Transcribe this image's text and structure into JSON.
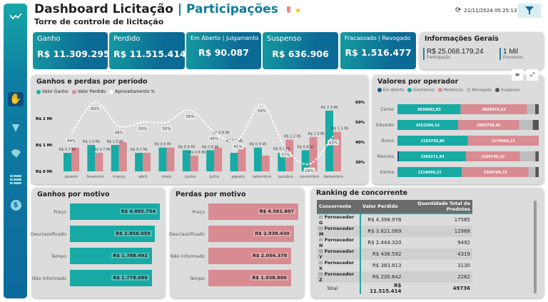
{
  "header": {
    "title": "Dashboard Licitação",
    "title_suffix": "| Participações",
    "subtitle": "Torre de controle de licitação",
    "refresh_time": "21/11/2024 05:25:13"
  },
  "sidebar": {
    "items": [
      {
        "icon": "trend-line-icon"
      },
      {
        "icon": "raised-hands-icon",
        "active": true
      },
      {
        "icon": "down-arrow-badge-icon"
      },
      {
        "icon": "brazil-map-icon"
      },
      {
        "icon": "list-icon"
      },
      {
        "icon": "dollar-icon"
      }
    ]
  },
  "kpis": [
    {
      "label": "Ganho",
      "value": "R$ 11.309.295"
    },
    {
      "label": "Perdido",
      "value": "R$ 11.515.414"
    },
    {
      "label": "Em Aberto | Julgamento",
      "value": "R$ 90.087"
    },
    {
      "label": "Suspenso",
      "value": "R$ 636.906"
    },
    {
      "label": "Fracassado | Revogado",
      "value": "R$ 1.516.477"
    }
  ],
  "info": {
    "title": "Informações Gerais",
    "items": [
      {
        "value": "R$ 25.068.179,24",
        "caption": "Participação"
      },
      {
        "value": "1 Mil",
        "caption": "Processos"
      }
    ]
  },
  "colors": {
    "ganho": "#18aaa4",
    "perdido": "#d98b92",
    "em_aberto": "#0d5c8e",
    "revogado": "#bdbdbd",
    "suspenso": "#555555",
    "primary": "#0d6a9c"
  },
  "chart_data": [
    {
      "type": "bar",
      "title": "Ganhos e perdas por período",
      "categories": [
        "janeiro",
        "fevereiro",
        "março",
        "abril",
        "maio",
        "junho",
        "julho",
        "agosto",
        "setembro",
        "outubro",
        "novembro",
        "dezembro"
      ],
      "series": [
        {
          "name": "Valor Ganho",
          "values": [
            0.7,
            1.0,
            1.0,
            0.7,
            0.9,
            0.8,
            0.8,
            0.7,
            0.9,
            0.7,
            0.8,
            2.3
          ],
          "labels": [
            "R$ 0.7 Mi",
            "R$ 1.0 Mi",
            "R$ 1.0 Mi",
            "R$ 0.7 Mi",
            "R$ 0.9 Mi",
            "R$ 0.8 Mi",
            "R$ 0.8 Mi",
            "R$ 0.7 Mi",
            "R$ 0.9 Mi",
            "R$ 0.7 Mi",
            "R$ 0.8 Mi",
            "R$ 2.3 Mi"
          ]
        },
        {
          "name": "Valor Perdido",
          "values": [
            0.9,
            0.7,
            1.1,
            0.7,
            0.9,
            0.6,
            0.9,
            0.9,
            0.6,
            1.2,
            1.3,
            1.5
          ],
          "labels": [
            "",
            "R$ 0.7 Mi",
            "",
            "",
            "",
            "R$ 0.6 Mi",
            "R$ 0.9 Mi",
            "",
            "",
            "R$ 1.2 Mi",
            "R$ 1.3 Mi",
            "R$ 1.5 Mi"
          ]
        },
        {
          "name": "Aproveitamento %",
          "type": "line",
          "axis": "right",
          "values": [
            44,
            60,
            48,
            50,
            50,
            56,
            45,
            41,
            59,
            37,
            29,
            43
          ]
        }
      ],
      "yticks": [
        "R$ 0 Mi",
        "R$ 1 Mi",
        "R$ 2 Mi"
      ],
      "ylim": [
        0,
        2.6
      ],
      "y2ticks": [
        "30%",
        "40%",
        "50%",
        "60%"
      ],
      "y2lim": [
        30,
        60
      ],
      "legend": "top-left"
    },
    {
      "type": "bar",
      "orientation": "horizontal",
      "stacked": "100%",
      "title": "Valores por operador",
      "legend_labels": [
        "Em Aberto",
        "Ganhamos",
        "Perdemos",
        "Revogado",
        "Suspenso"
      ],
      "categories": [
        "Carlos",
        "Eduardo",
        "Breno",
        "Marcela",
        "Karina"
      ],
      "series": [
        {
          "name": "Em Aberto",
          "values": [
            0,
            0,
            0,
            39000,
            0
          ]
        },
        {
          "name": "Ganhamos",
          "values": [
            3820682.83,
            2652304.12,
            2154736.8,
            1562571.84,
            1318999.21
          ],
          "labels": [
            "3820682,83",
            "2652304,12",
            "2154736,80",
            "1562571,84",
            "1318999,21"
          ]
        },
        {
          "name": "Perdemos",
          "values": [
            4029574.22,
            2683745.02,
            2170596.11,
            1266749.15,
            1364769.72
          ],
          "labels": [
            "4029574,22",
            "2683745,02",
            "2170596,11",
            "1266749,15",
            "1364769,72"
          ]
        },
        {
          "name": "Revogado",
          "values": [
            488000,
            593000,
            0,
            361000,
            141000
          ]
        },
        {
          "name": "Suspenso",
          "values": [
            215000,
            259000,
            0,
            78000,
            68000
          ]
        }
      ]
    },
    {
      "type": "bar",
      "orientation": "horizontal",
      "title": "Ganhos por motivo",
      "categories": [
        "Preço",
        "Desclassificado",
        "Tempo",
        "Não Informado"
      ],
      "values": [
        4885754,
        2856959,
        1788492,
        1778089
      ],
      "labels": [
        "R$ 4.885.754",
        "R$ 2.856.959",
        "R$ 1.788.492",
        "R$ 1.778.089"
      ]
    },
    {
      "type": "bar",
      "orientation": "horizontal",
      "title": "Perdas por motivo",
      "categories": [
        "Preço",
        "Desclassificado",
        "Não Informado",
        "Tempo"
      ],
      "values": [
        4581807,
        2938430,
        2056378,
        1938800
      ],
      "labels": [
        "R$ 4.581.807",
        "R$ 2.938.430",
        "R$ 2.056.378",
        "R$ 1.938.800"
      ]
    }
  ],
  "ranking": {
    "title": "Ranking de concorrente",
    "columns": [
      "Concorrente",
      "Valor Perdido",
      "Quantidade Total de Produtos"
    ],
    "rows": [
      [
        "Fornecedor G",
        "R$ 4.398.978",
        "17565"
      ],
      [
        "Fornecedor M",
        "R$ 3.621.069",
        "12968"
      ],
      [
        "Fornecedor N",
        "R$ 2.444.320",
        "9492"
      ],
      [
        "Fornecedor Y",
        "R$ 436.592",
        "4319"
      ],
      [
        "Fornecedor X",
        "R$ 383.813",
        "3130"
      ],
      [
        "Fornecedor Z",
        "R$ 230.642",
        "2262"
      ]
    ],
    "total": [
      "Total",
      "R$ 11.515.414",
      "49736"
    ]
  }
}
